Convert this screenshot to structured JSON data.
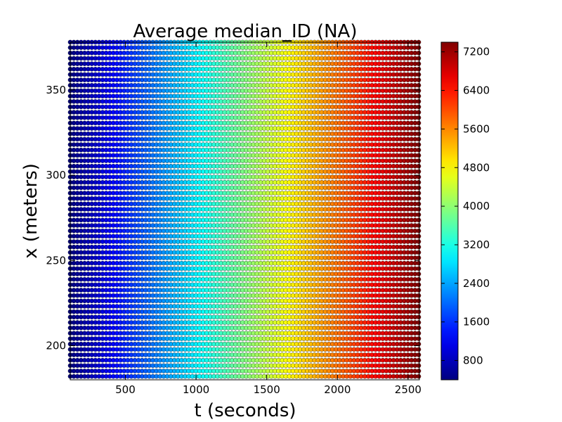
{
  "chart_data": {
    "type": "scatter",
    "title": "Average median_ID (NA)",
    "xlabel": "t (seconds)",
    "ylabel": "x (meters)",
    "xlim": [
      110,
      2580
    ],
    "ylim": [
      180,
      378
    ],
    "xticks": [
      500,
      1000,
      1500,
      2000,
      2500
    ],
    "yticks": [
      200,
      250,
      300,
      350
    ],
    "grid": false,
    "point_grid": {
      "t_start": 110,
      "t_end": 2575,
      "t_count": 98,
      "x_start": 182,
      "x_end": 378,
      "x_count": 63
    },
    "color_variable": "median_ID",
    "color_map": "jet",
    "color_range": [
      400,
      7400
    ],
    "colorbar_ticks": [
      800,
      1600,
      2400,
      3200,
      4000,
      4800,
      5600,
      6400,
      7200
    ],
    "colorbar_tick_labels": [
      "800",
      "1600",
      "2400",
      "3200",
      "4000",
      "4800",
      "5600",
      "6400",
      "7200"
    ],
    "color_model": "median_ID increases roughly linearly with t: ~400 at t=110 to ~7400 at t=2575; independent of x"
  }
}
